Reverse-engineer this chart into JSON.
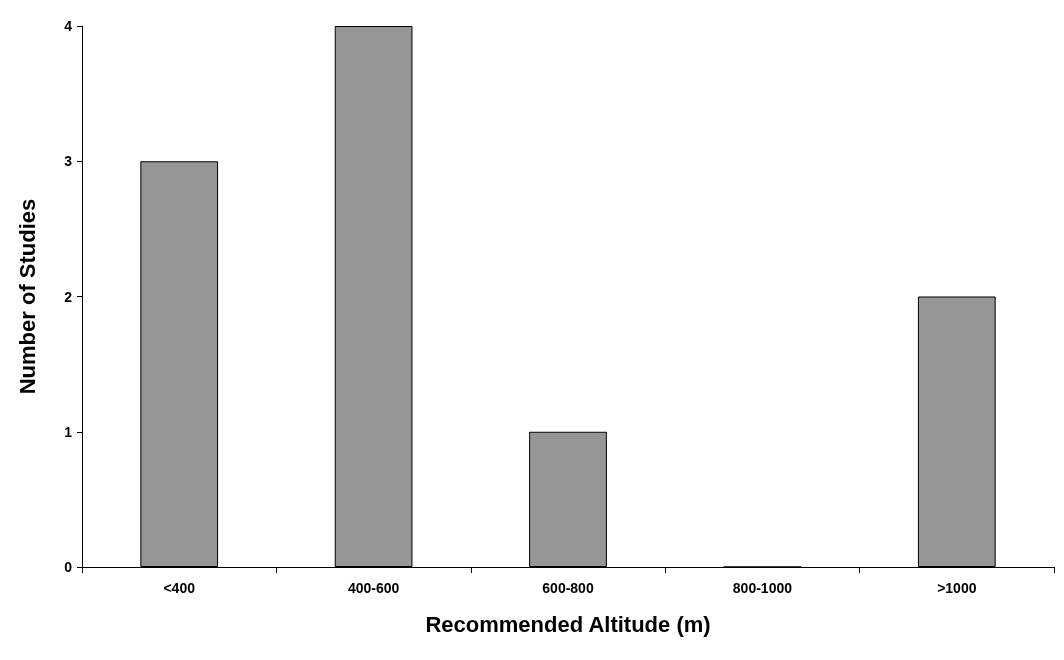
{
  "chart_data": {
    "type": "bar",
    "xlabel": "Recommended Altitude (m)",
    "ylabel": "Number of Studies",
    "categories": [
      "<400",
      "400-600",
      "600-800",
      "800-1000",
      ">1000"
    ],
    "values": [
      3,
      4,
      1,
      0,
      2
    ],
    "color": "#969696",
    "ylim": [
      0,
      4
    ],
    "yticks": [
      0,
      1,
      2,
      3,
      4
    ],
    "grid": false
  }
}
